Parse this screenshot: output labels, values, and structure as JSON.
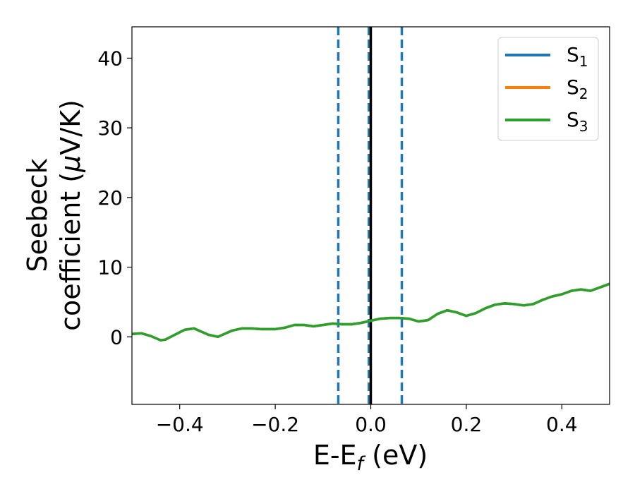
{
  "chart_data": {
    "type": "line",
    "xlabel": "E-E",
    "xlabel_sub": "f",
    "xlabel_unit": " (eV)",
    "ylabel_line1": "Seebeck",
    "ylabel_line2": "coefficient  (",
    "ylabel_mu": "μ",
    "ylabel_unit": "V/K)",
    "xlim": [
      -0.5,
      0.5
    ],
    "ylim": [
      -9.7,
      44.5
    ],
    "xticks": [
      -0.4,
      -0.2,
      0.0,
      0.2,
      0.4
    ],
    "xtick_labels": [
      "−0.4",
      "−0.2",
      "0.0",
      "0.2",
      "0.4"
    ],
    "yticks": [
      0,
      10,
      20,
      30,
      40
    ],
    "ytick_labels": [
      "0",
      "10",
      "20",
      "30",
      "40"
    ],
    "grid": false,
    "legend_position": "top-right",
    "series": [
      {
        "name": "S",
        "name_sub": "1",
        "color": "#1f77b4",
        "x": [
          -0.5,
          -0.48,
          -0.46,
          -0.44,
          -0.43,
          -0.41,
          -0.39,
          -0.37,
          -0.36,
          -0.34,
          -0.32,
          -0.31,
          -0.29,
          -0.27,
          -0.25,
          -0.23,
          -0.2,
          -0.18,
          -0.16,
          -0.14,
          -0.12,
          -0.1,
          -0.08,
          -0.06,
          -0.04,
          -0.02,
          0.0,
          0.02,
          0.04,
          0.06,
          0.08,
          0.1,
          0.12,
          0.14,
          0.16,
          0.18,
          0.2,
          0.22,
          0.24,
          0.26,
          0.28,
          0.3,
          0.32,
          0.34,
          0.36,
          0.38,
          0.4,
          0.42,
          0.44,
          0.46,
          0.48,
          0.5
        ],
        "y": [
          0.4,
          0.5,
          0.1,
          -0.5,
          -0.4,
          0.3,
          1.0,
          1.2,
          0.9,
          0.3,
          0.0,
          0.3,
          0.9,
          1.2,
          1.2,
          1.1,
          1.1,
          1.3,
          1.7,
          1.7,
          1.5,
          1.7,
          1.9,
          1.8,
          1.8,
          2.0,
          2.3,
          2.6,
          2.7,
          2.7,
          2.6,
          2.2,
          2.4,
          3.3,
          3.8,
          3.5,
          3.0,
          3.4,
          4.1,
          4.6,
          4.8,
          4.7,
          4.5,
          4.7,
          5.3,
          5.8,
          6.1,
          6.6,
          6.8,
          6.6,
          7.1,
          7.6
        ]
      },
      {
        "name": "S",
        "name_sub": "2",
        "color": "#ff7f0e",
        "x": [
          -0.5,
          -0.48,
          -0.46,
          -0.44,
          -0.43,
          -0.41,
          -0.39,
          -0.37,
          -0.36,
          -0.34,
          -0.32,
          -0.31,
          -0.29,
          -0.27,
          -0.25,
          -0.23,
          -0.2,
          -0.18,
          -0.16,
          -0.14,
          -0.12,
          -0.1,
          -0.08,
          -0.06,
          -0.04,
          -0.02,
          0.0,
          0.02,
          0.04,
          0.06,
          0.08,
          0.1,
          0.12,
          0.14,
          0.16,
          0.18,
          0.2,
          0.22,
          0.24,
          0.26,
          0.28,
          0.3,
          0.32,
          0.34,
          0.36,
          0.38,
          0.4,
          0.42,
          0.44,
          0.46,
          0.48,
          0.5
        ],
        "y": [
          0.4,
          0.5,
          0.1,
          -0.5,
          -0.4,
          0.3,
          1.0,
          1.2,
          0.9,
          0.3,
          0.0,
          0.3,
          0.9,
          1.2,
          1.2,
          1.1,
          1.1,
          1.3,
          1.7,
          1.7,
          1.5,
          1.7,
          1.9,
          1.8,
          1.8,
          2.0,
          2.3,
          2.6,
          2.7,
          2.7,
          2.6,
          2.2,
          2.4,
          3.3,
          3.8,
          3.5,
          3.0,
          3.4,
          4.1,
          4.6,
          4.8,
          4.7,
          4.5,
          4.7,
          5.3,
          5.8,
          6.1,
          6.6,
          6.8,
          6.6,
          7.1,
          7.6
        ]
      },
      {
        "name": "S",
        "name_sub": "3",
        "color": "#2ca02c",
        "x": [
          -0.5,
          -0.48,
          -0.46,
          -0.44,
          -0.43,
          -0.41,
          -0.39,
          -0.37,
          -0.36,
          -0.34,
          -0.32,
          -0.31,
          -0.29,
          -0.27,
          -0.25,
          -0.23,
          -0.2,
          -0.18,
          -0.16,
          -0.14,
          -0.12,
          -0.1,
          -0.08,
          -0.06,
          -0.04,
          -0.02,
          0.0,
          0.02,
          0.04,
          0.06,
          0.08,
          0.1,
          0.12,
          0.14,
          0.16,
          0.18,
          0.2,
          0.22,
          0.24,
          0.26,
          0.28,
          0.3,
          0.32,
          0.34,
          0.36,
          0.38,
          0.4,
          0.42,
          0.44,
          0.46,
          0.48,
          0.5
        ],
        "y": [
          0.4,
          0.5,
          0.1,
          -0.5,
          -0.4,
          0.3,
          1.0,
          1.2,
          0.9,
          0.3,
          0.0,
          0.3,
          0.9,
          1.2,
          1.2,
          1.1,
          1.1,
          1.3,
          1.7,
          1.7,
          1.5,
          1.7,
          1.9,
          1.8,
          1.8,
          2.0,
          2.3,
          2.6,
          2.7,
          2.7,
          2.6,
          2.2,
          2.4,
          3.3,
          3.8,
          3.5,
          3.0,
          3.4,
          4.1,
          4.6,
          4.8,
          4.7,
          4.5,
          4.7,
          5.3,
          5.8,
          6.1,
          6.6,
          6.8,
          6.6,
          7.1,
          7.6
        ]
      }
    ],
    "vlines": [
      {
        "x": -0.068,
        "style": "dashed",
        "color": "#1f77b4"
      },
      {
        "x": -0.004,
        "style": "dashed",
        "color": "#1f77b4"
      },
      {
        "x": 0.065,
        "style": "dashed",
        "color": "#1f77b4"
      },
      {
        "x": 0.0,
        "style": "solid",
        "color": "#000000"
      }
    ]
  }
}
